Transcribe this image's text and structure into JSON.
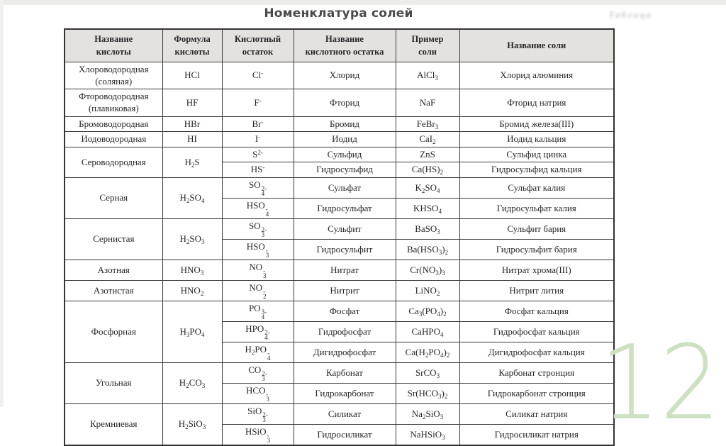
{
  "page": {
    "title": "Номенклатура солей",
    "faded_caption": "Таблица",
    "slide_number": "12",
    "colors": {
      "header_bg": "#e3e2de",
      "border": "#3a3a3a",
      "watermark_green": "#cde0c1",
      "title_text": "#4a4a4a"
    }
  },
  "table": {
    "headers": [
      "Название\nкислоты",
      "Формула\nкислоты",
      "Кислотный\nостаток",
      "Название\nкислотного остатка",
      "Пример\nсоли",
      "Название соли"
    ],
    "groups": [
      {
        "acid": "Хлороводородная\n(соляная)",
        "formula": "HCl",
        "rows": [
          {
            "residue": "Cl^-",
            "residue_name": "Хлорид",
            "salt": "AlCl_3",
            "salt_name": "Хлорид алюминия"
          }
        ]
      },
      {
        "acid": "Фтороводородная\n(плавиковая)",
        "formula": "HF",
        "rows": [
          {
            "residue": "F^-",
            "residue_name": "Фторид",
            "salt": "NaF",
            "salt_name": "Фторид натрия"
          }
        ]
      },
      {
        "acid": "Бромоводородная",
        "formula": "HBr",
        "rows": [
          {
            "residue": "Br^-",
            "residue_name": "Бромид",
            "salt": "FeBr_3",
            "salt_name": "Бромид железа(III)"
          }
        ]
      },
      {
        "acid": "Иодоводородная",
        "formula": "HI",
        "rows": [
          {
            "residue": "I^-",
            "residue_name": "Иодид",
            "salt": "CaI_2",
            "salt_name": "Иодид кальция"
          }
        ]
      },
      {
        "acid": "Сероводородная",
        "formula": "H_2S",
        "rows": [
          {
            "residue": "S^2-",
            "residue_name": "Сульфид",
            "salt": "ZnS",
            "salt_name": "Сульфид цинка"
          },
          {
            "residue": "HS^-",
            "residue_name": "Гидросульфид",
            "salt": "Ca(HS)_2",
            "salt_name": "Гидросульфид кальция"
          }
        ]
      },
      {
        "acid": "Серная",
        "formula": "H_2SO_4",
        "rows": [
          {
            "residue": "SO_4^2-",
            "residue_name": "Сульфат",
            "salt": "K_2SO_4",
            "salt_name": "Сульфат калия"
          },
          {
            "residue": "HSO_4^-",
            "residue_name": "Гидросульфат",
            "salt": "KHSO_4",
            "salt_name": "Гидросульфат калия"
          }
        ]
      },
      {
        "acid": "Сернистая",
        "formula": "H_2SO_3",
        "rows": [
          {
            "residue": "SO_3^2-",
            "residue_name": "Сульфит",
            "salt": "BaSO_3",
            "salt_name": "Сульфит бария"
          },
          {
            "residue": "HSO_3^-",
            "residue_name": "Гидросульфит",
            "salt": "Ba(HSO_3)_2",
            "salt_name": "Гидросульфит бария"
          }
        ]
      },
      {
        "acid": "Азотная",
        "formula": "HNO_3",
        "rows": [
          {
            "residue": "NO_3^-",
            "residue_name": "Нитрат",
            "salt": "Cr(NO_3)_3",
            "salt_name": "Нитрат хрома(III)"
          }
        ]
      },
      {
        "acid": "Азотистая",
        "formula": "HNO_2",
        "rows": [
          {
            "residue": "NO_2^-",
            "residue_name": "Нитрит",
            "salt": "LiNO_2",
            "salt_name": "Нитрит лития"
          }
        ]
      },
      {
        "acid": "Фосфорная",
        "formula": "H_3PO_4",
        "rows": [
          {
            "residue": "PO_4^3-",
            "residue_name": "Фосфат",
            "salt": "Ca_3(PO_4)_2",
            "salt_name": "Фосфат кальция"
          },
          {
            "residue": "HPO_4^2-",
            "residue_name": "Гидрофосфат",
            "salt": "CaHPO_4",
            "salt_name": "Гидрофосфат кальция"
          },
          {
            "residue": "H_2PO_4^-",
            "residue_name": "Дигидрофосфат",
            "salt": "Ca(H_2PO_4)_2",
            "salt_name": "Дигидрофосфат кальция"
          }
        ]
      },
      {
        "acid": "Угольная",
        "formula": "H_2CO_3",
        "rows": [
          {
            "residue": "CO_3^2-",
            "residue_name": "Карбонат",
            "salt": "SrCO_3",
            "salt_name": "Карбонат стронция"
          },
          {
            "residue": "HCO_3^-",
            "residue_name": "Гидрокарбонат",
            "salt": "Sr(HCO_3)_2",
            "salt_name": "Гидрокарбонат стронция"
          }
        ]
      },
      {
        "acid": "Кремниевая",
        "formula": "H_2SiO_3",
        "rows": [
          {
            "residue": "SiO_3^2-",
            "residue_name": "Силикат",
            "salt": "Na_2SiO_3",
            "salt_name": "Силикат натрия"
          },
          {
            "residue": "HSiO_3^-",
            "residue_name": "Гидросиликат",
            "salt": "NaHSiO_3",
            "salt_name": "Гидросиликат натрия"
          }
        ]
      }
    ]
  }
}
